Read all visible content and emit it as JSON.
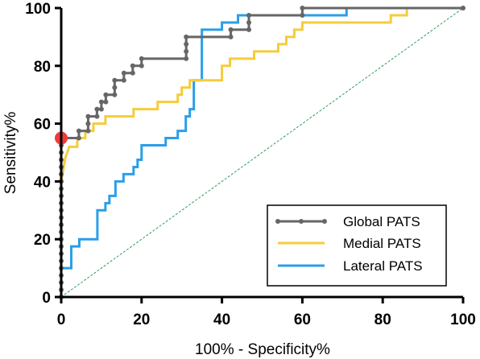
{
  "chart_data": {
    "type": "line",
    "title": "",
    "xlabel": "100% - Specificity%",
    "ylabel": "Sensitivity%",
    "xlim": [
      0,
      100
    ],
    "ylim": [
      0,
      100
    ],
    "xticks": [
      "0",
      "20",
      "40",
      "60",
      "80",
      "100"
    ],
    "yticks": [
      "0",
      "20",
      "40",
      "60",
      "80",
      "100"
    ],
    "grid": false,
    "legend_position": "bottom-right",
    "series": [
      {
        "name": "Global PATS",
        "color": "#666666",
        "marker": "circle",
        "points": [
          [
            0,
            0
          ],
          [
            0,
            2.5
          ],
          [
            0,
            5
          ],
          [
            0,
            7.5
          ],
          [
            0,
            10
          ],
          [
            0,
            12.5
          ],
          [
            0,
            15
          ],
          [
            0,
            17.5
          ],
          [
            0,
            20
          ],
          [
            0,
            22.5
          ],
          [
            0,
            25
          ],
          [
            0,
            27.5
          ],
          [
            0,
            30
          ],
          [
            0,
            32.5
          ],
          [
            0,
            35
          ],
          [
            0,
            37.5
          ],
          [
            0,
            40
          ],
          [
            0,
            42.5
          ],
          [
            0,
            45
          ],
          [
            0,
            47.5
          ],
          [
            0,
            50
          ],
          [
            0,
            52.5
          ],
          [
            0,
            55
          ],
          [
            4.4,
            55
          ],
          [
            4.4,
            57.5
          ],
          [
            6.7,
            57.5
          ],
          [
            6.7,
            60
          ],
          [
            6.7,
            62.5
          ],
          [
            8.9,
            62.5
          ],
          [
            8.9,
            65
          ],
          [
            10,
            65
          ],
          [
            10,
            67.5
          ],
          [
            11.1,
            67.5
          ],
          [
            11.1,
            70
          ],
          [
            13.3,
            70
          ],
          [
            13.3,
            72.5
          ],
          [
            13.3,
            75
          ],
          [
            15.6,
            75
          ],
          [
            15.6,
            77.5
          ],
          [
            17.8,
            77.5
          ],
          [
            17.8,
            80
          ],
          [
            20,
            80
          ],
          [
            20,
            82.5
          ],
          [
            31.1,
            82.5
          ],
          [
            31.1,
            85
          ],
          [
            31.1,
            87.5
          ],
          [
            31.1,
            90
          ],
          [
            42.2,
            90
          ],
          [
            42.2,
            92.5
          ],
          [
            46.7,
            92.5
          ],
          [
            46.7,
            95
          ],
          [
            46.7,
            97.5
          ],
          [
            60,
            97.5
          ],
          [
            60,
            100
          ],
          [
            100,
            100
          ]
        ]
      },
      {
        "name": "Medial PATS",
        "color": "#f5cc3c",
        "marker": "none",
        "points": [
          [
            0,
            0
          ],
          [
            0,
            40
          ],
          [
            0.5,
            44
          ],
          [
            1,
            48
          ],
          [
            2,
            52
          ],
          [
            4,
            52
          ],
          [
            4,
            55
          ],
          [
            6,
            55
          ],
          [
            6,
            57.5
          ],
          [
            8,
            57.5
          ],
          [
            8,
            60
          ],
          [
            11,
            60
          ],
          [
            11,
            62.5
          ],
          [
            18,
            62.5
          ],
          [
            18,
            65
          ],
          [
            24,
            65
          ],
          [
            24,
            67.5
          ],
          [
            29,
            67.5
          ],
          [
            29,
            70
          ],
          [
            30,
            70
          ],
          [
            30,
            72.5
          ],
          [
            32,
            72.5
          ],
          [
            32,
            75
          ],
          [
            40,
            75
          ],
          [
            40,
            80
          ],
          [
            42,
            80
          ],
          [
            42,
            82.5
          ],
          [
            48,
            82.5
          ],
          [
            48,
            85
          ],
          [
            54,
            85
          ],
          [
            54,
            87.5
          ],
          [
            56,
            87.5
          ],
          [
            56,
            90
          ],
          [
            58,
            90
          ],
          [
            58,
            92.5
          ],
          [
            60,
            92.5
          ],
          [
            60,
            95
          ],
          [
            82,
            95
          ],
          [
            82,
            97.5
          ],
          [
            86,
            97.5
          ],
          [
            86,
            100
          ],
          [
            100,
            100
          ]
        ]
      },
      {
        "name": "Lateral PATS",
        "color": "#2b9ee8",
        "marker": "none",
        "points": [
          [
            0,
            0
          ],
          [
            0,
            10
          ],
          [
            2.5,
            10
          ],
          [
            2.5,
            17.5
          ],
          [
            4.5,
            17.5
          ],
          [
            4.5,
            20
          ],
          [
            9,
            20
          ],
          [
            9,
            30
          ],
          [
            11,
            30
          ],
          [
            11,
            32.5
          ],
          [
            12,
            32.5
          ],
          [
            12,
            35
          ],
          [
            13.5,
            35
          ],
          [
            13.5,
            40
          ],
          [
            15.5,
            40
          ],
          [
            15.5,
            42.5
          ],
          [
            18,
            42.5
          ],
          [
            18,
            45
          ],
          [
            19,
            45
          ],
          [
            19,
            47.5
          ],
          [
            20,
            47.5
          ],
          [
            20,
            52.5
          ],
          [
            26,
            52.5
          ],
          [
            26,
            55
          ],
          [
            29,
            55
          ],
          [
            29,
            57.5
          ],
          [
            31,
            57.5
          ],
          [
            31,
            62.5
          ],
          [
            32,
            62.5
          ],
          [
            32,
            65
          ],
          [
            33,
            65
          ],
          [
            33,
            75
          ],
          [
            35,
            75
          ],
          [
            35,
            92.5
          ],
          [
            40,
            92.5
          ],
          [
            40,
            95
          ],
          [
            44,
            95
          ],
          [
            44,
            97.5
          ],
          [
            71,
            97.5
          ],
          [
            71,
            100
          ],
          [
            100,
            100
          ]
        ]
      },
      {
        "name": "",
        "color": "#2e9e5b",
        "marker": "none",
        "dashed": true,
        "points": [
          [
            0,
            0
          ],
          [
            100,
            100
          ]
        ]
      }
    ],
    "highlight_point": {
      "x": 0,
      "y": 55,
      "color": "#f03b3b"
    }
  }
}
